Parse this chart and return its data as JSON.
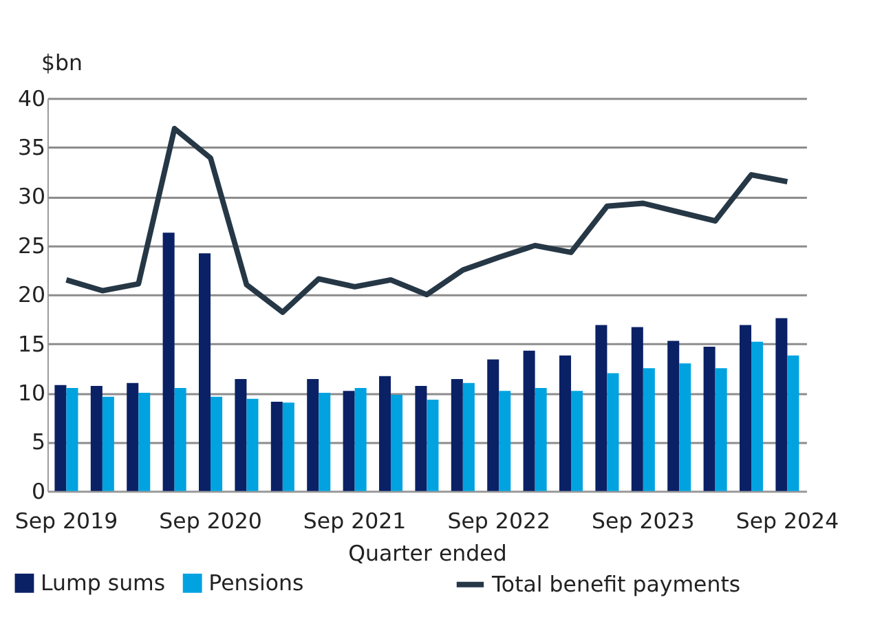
{
  "chart_data": {
    "type": "bar",
    "categories": [
      "Sep 2019",
      null,
      null,
      null,
      "Sep 2020",
      null,
      null,
      null,
      "Sep 2021",
      null,
      null,
      null,
      "Sep 2022",
      null,
      null,
      null,
      "Sep 2023",
      null,
      null,
      null,
      "Sep 2024"
    ],
    "series": [
      {
        "name": "Lump sums",
        "color": "#0a2165",
        "values": [
          10.8,
          10.7,
          11.0,
          26.3,
          24.2,
          11.4,
          9.1,
          11.4,
          10.2,
          11.7,
          10.7,
          11.4,
          13.4,
          14.3,
          13.8,
          16.9,
          16.7,
          15.3,
          14.7,
          16.9,
          17.6
        ]
      },
      {
        "name": "Pensions",
        "color": "#00a3e0",
        "values": [
          10.5,
          9.6,
          10.0,
          10.5,
          9.6,
          9.4,
          9.0,
          10.0,
          10.5,
          9.8,
          9.3,
          11.0,
          10.2,
          10.5,
          10.2,
          12.0,
          12.5,
          13.0,
          12.5,
          15.2,
          13.8
        ]
      },
      {
        "name": "Total benefit payments",
        "type": "line",
        "color": "#263746",
        "values": [
          21.5,
          20.4,
          21.1,
          36.9,
          33.9,
          21.0,
          18.2,
          21.6,
          20.8,
          21.5,
          20.0,
          22.5,
          23.8,
          25.0,
          24.3,
          29.0,
          29.3,
          28.4,
          27.5,
          32.2,
          31.5
        ]
      }
    ],
    "xlabel": "Quarter ended",
    "ylabel": "$bn",
    "ylim": [
      0,
      40
    ],
    "yticks": [
      0,
      5,
      10,
      15,
      20,
      25,
      30,
      35,
      40
    ],
    "grid": "y",
    "legend": "bottom"
  }
}
